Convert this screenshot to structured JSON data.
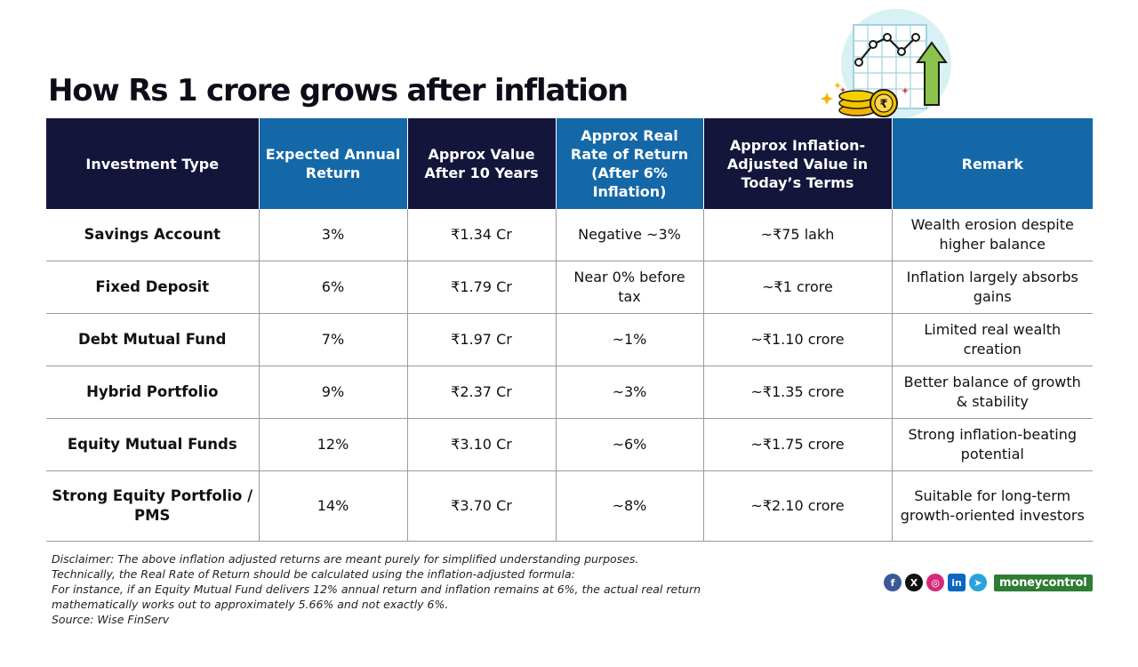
{
  "title": "How Rs 1 crore grows after inflation",
  "table": {
    "headers": [
      "Investment Type",
      "Expected Annual Return",
      "Approx Value After 10 Years",
      "Approx Real Rate of Return (After 6% Inflation)",
      "Approx Inflation-Adjusted Value in Today’s Terms",
      "Remark"
    ],
    "header_colors": {
      "dark": "#14153b",
      "blue": "#1468a8"
    },
    "rows": [
      [
        "Savings Account",
        "3%",
        "₹1.34 Cr",
        "Negative ~3%",
        "~₹75 lakh",
        "Wealth erosion despite higher balance"
      ],
      [
        "Fixed Deposit",
        "6%",
        "₹1.79 Cr",
        "Near 0% before tax",
        "~₹1 crore",
        "Inflation largely absorbs gains"
      ],
      [
        "Debt Mutual Fund",
        "7%",
        "₹1.97 Cr",
        "~1%",
        "~₹1.10 crore",
        "Limited real wealth creation"
      ],
      [
        "Hybrid Portfolio",
        "9%",
        "₹2.37 Cr",
        "~3%",
        "~₹1.35 crore",
        "Better balance of growth & stability"
      ],
      [
        "Equity Mutual Funds",
        "12%",
        "₹3.10 Cr",
        "~6%",
        "~₹1.75 crore",
        "Strong inflation-beating potential"
      ],
      [
        "Strong Equity Portfolio / PMS",
        "14%",
        "₹3.70 Cr",
        "~8%",
        "~₹2.10 crore",
        "Suitable for long-term growth-oriented investors"
      ]
    ]
  },
  "disclaimer": [
    "Disclaimer: The above inflation adjusted returns  are meant purely for  simplified understanding purposes.",
    "Technically, the Real Rate of Return should be calculated using the inflation-adjusted formula:",
    "For instance, if an Equity Mutual Fund delivers 12% annual return and inflation remains at 6%, the actual real return",
    "mathematically works out to approximately 5.66% and not exactly 6%.",
    "Source: Wise FinServ"
  ],
  "social": {
    "icons": [
      {
        "name": "facebook-icon",
        "glyph": "f",
        "color": "#3b5998"
      },
      {
        "name": "x-icon",
        "glyph": "X",
        "color": "#111111"
      },
      {
        "name": "instagram-icon",
        "glyph": "◎",
        "color": "#d6297a"
      },
      {
        "name": "linkedin-icon",
        "glyph": "in",
        "color": "#0a66c2"
      },
      {
        "name": "telegram-icon",
        "glyph": "➤",
        "color": "#2aa3dd"
      }
    ],
    "brand": "moneycontrol"
  },
  "illustration": {
    "icon": "growth-chart-coins-icon",
    "currency_symbol": "₹"
  }
}
